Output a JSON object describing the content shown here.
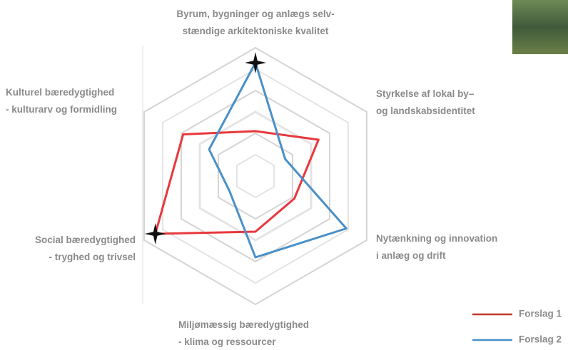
{
  "chart_data": {
    "type": "radar",
    "categories": [
      "Byrum, bygninger og anlægs selv-\nstændige arkitektoniske kvalitet",
      "Styrkelse af lokal by–\nog landskabsidentitet",
      "Nytænkning og innovation\ni anlæg og drift",
      "Miljømæssig bæredygtighed\n- klima og ressourcer",
      "Social bæredygtighed\n- tryghed og trivsel",
      "Kulturel bæredygtighed\n- kulturarv og formidling"
    ],
    "series": [
      {
        "name": "Forslag 1",
        "color": "#e8383d",
        "values": [
          2.1,
          3.4,
          2.1,
          2.6,
          5.4,
          3.9
        ]
      },
      {
        "name": "Forslag 2",
        "color": "#4a90c8",
        "values": [
          5.3,
          1.6,
          4.9,
          3.8,
          1.4,
          2.5
        ]
      }
    ],
    "rlim": [
      0,
      6
    ],
    "rticks": [
      1,
      2,
      3,
      4,
      5,
      6
    ],
    "grid": true
  }
}
